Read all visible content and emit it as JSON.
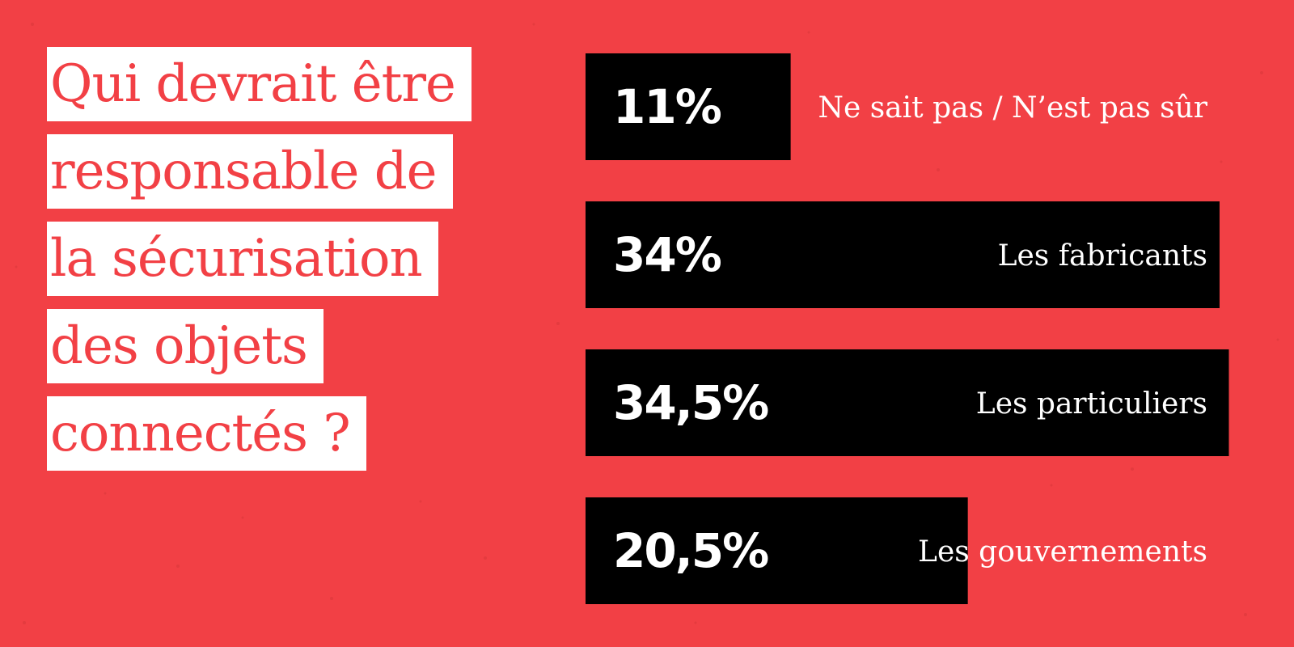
{
  "title_lines": [
    "Qui devrait être",
    "responsable de",
    "la sécurisation",
    "des objets",
    "connectés ?"
  ],
  "colors": {
    "background": "#f24045",
    "bar": "#000000",
    "title_box": "#ffffff",
    "title_text": "#f24045",
    "bar_text": "#ffffff"
  },
  "chart_data": {
    "type": "bar",
    "orientation": "horizontal",
    "categories": [
      "Ne sait pas / N’est pas sûr",
      "Les fabricants",
      "Les particuliers",
      "Les gouvernements"
    ],
    "values": [
      11,
      34,
      34.5,
      20.5
    ],
    "value_labels": [
      "11%",
      "34%",
      "34,5%",
      "20,5%"
    ],
    "unit": "%",
    "xlim": [
      0,
      35
    ],
    "grid": false,
    "legend": "none"
  }
}
